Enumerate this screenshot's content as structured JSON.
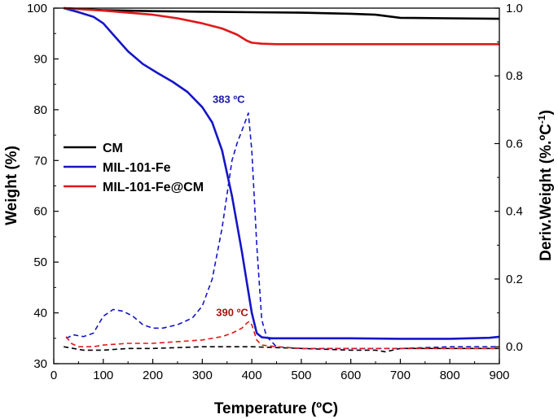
{
  "chart_data": {
    "type": "line",
    "xlabel": "Temperature (ºC)",
    "ylabel_left": "Weight (%)",
    "ylabel_right": "Deriv.Weight (%.ºC",
    "ylabel_right_sup": "-1",
    "ylabel_right_close": ")",
    "xlim": [
      0,
      900
    ],
    "ylim_left": [
      30,
      100
    ],
    "ylim_right": [
      -0.05,
      1.0
    ],
    "x_ticks": [
      "0",
      "100",
      "200",
      "300",
      "400",
      "500",
      "600",
      "700",
      "800",
      "900"
    ],
    "y_left_ticks": [
      "30",
      "40",
      "50",
      "60",
      "70",
      "80",
      "90",
      "100"
    ],
    "y_right_ticks": [
      "0.0",
      "0.2",
      "0.4",
      "0.6",
      "0.8",
      "1.0"
    ],
    "legend": {
      "position": "middle-left",
      "entries": [
        {
          "label": "CM",
          "color": "#000000"
        },
        {
          "label": "MIL-101-Fe",
          "color": "#1515c8"
        },
        {
          "label": "MIL-101-Fe@CM",
          "color": "#e01818"
        }
      ]
    },
    "annotations": [
      {
        "text": "383 ºC",
        "x": 383,
        "y_right": 0.72,
        "color": "#1a1aa0"
      },
      {
        "text": "390 ºC",
        "x": 390,
        "y_right": 0.09,
        "color": "#b01010"
      }
    ],
    "series": [
      {
        "name": "CM",
        "axis": "left",
        "style": "solid",
        "color": "#000000",
        "x": [
          20,
          100,
          200,
          300,
          400,
          500,
          600,
          650,
          700,
          800,
          900
        ],
        "y": [
          100,
          99.6,
          99.4,
          99.3,
          99.2,
          99.1,
          98.9,
          98.7,
          98.1,
          98.0,
          97.9
        ]
      },
      {
        "name": "MIL-101-Fe",
        "axis": "left",
        "style": "solid",
        "color": "#1515c8",
        "x": [
          20,
          50,
          80,
          100,
          120,
          150,
          180,
          210,
          240,
          270,
          300,
          320,
          340,
          360,
          380,
          390,
          400,
          410,
          420,
          440,
          500,
          600,
          700,
          800,
          880,
          900
        ],
        "y": [
          100,
          99.2,
          98.3,
          97,
          94.8,
          91.5,
          89,
          87.2,
          85.5,
          83.5,
          80.5,
          77.5,
          72,
          63,
          52,
          46,
          40,
          36,
          35.2,
          35.0,
          35.0,
          35.0,
          34.9,
          34.9,
          35.1,
          35.3
        ]
      },
      {
        "name": "MIL-101-Fe@CM",
        "axis": "left",
        "style": "solid",
        "color": "#e01818",
        "x": [
          20,
          100,
          200,
          250,
          300,
          340,
          370,
          390,
          400,
          420,
          450,
          500,
          600,
          700,
          800,
          900
        ],
        "y": [
          100,
          99.5,
          98.7,
          98,
          97,
          96,
          94.8,
          93.6,
          93.2,
          93.0,
          92.9,
          92.9,
          92.9,
          92.9,
          92.9,
          92.9
        ]
      },
      {
        "name": "CM",
        "axis": "right",
        "style": "dashed",
        "color": "#000000",
        "x": [
          20,
          60,
          100,
          150,
          200,
          300,
          400,
          500,
          600,
          650,
          670,
          700,
          800,
          900
        ],
        "y": [
          0.0,
          -0.01,
          -0.01,
          -0.005,
          -0.005,
          0.0,
          0.0,
          -0.005,
          -0.01,
          -0.01,
          -0.015,
          -0.005,
          -0.005,
          -0.005
        ]
      },
      {
        "name": "MIL-101-Fe",
        "axis": "right",
        "style": "dashed",
        "color": "#1515c8",
        "x": [
          25,
          40,
          60,
          80,
          100,
          120,
          140,
          160,
          180,
          200,
          220,
          250,
          280,
          300,
          320,
          340,
          360,
          370,
          383,
          393,
          400,
          410,
          420,
          430,
          450,
          500,
          600,
          700,
          800,
          900
        ],
        "y": [
          0.025,
          0.035,
          0.03,
          0.04,
          0.09,
          0.11,
          0.105,
          0.09,
          0.065,
          0.055,
          0.055,
          0.065,
          0.085,
          0.12,
          0.2,
          0.35,
          0.55,
          0.6,
          0.65,
          0.69,
          0.58,
          0.3,
          0.08,
          0.03,
          0.0,
          -0.005,
          -0.005,
          -0.005,
          0.0,
          0.0
        ]
      },
      {
        "name": "MIL-101-Fe@CM",
        "axis": "right",
        "style": "dashed",
        "color": "#e01818",
        "x": [
          25,
          35,
          50,
          80,
          100,
          150,
          200,
          250,
          300,
          340,
          360,
          380,
          390,
          395,
          400,
          410,
          420,
          450,
          500,
          600,
          700,
          800,
          900
        ],
        "y": [
          0.03,
          0.01,
          0.0,
          0.0,
          0.005,
          0.01,
          0.01,
          0.015,
          0.02,
          0.03,
          0.04,
          0.055,
          0.07,
          0.075,
          0.065,
          0.02,
          0.005,
          0.0,
          -0.005,
          -0.005,
          -0.005,
          -0.005,
          -0.005
        ]
      }
    ]
  }
}
